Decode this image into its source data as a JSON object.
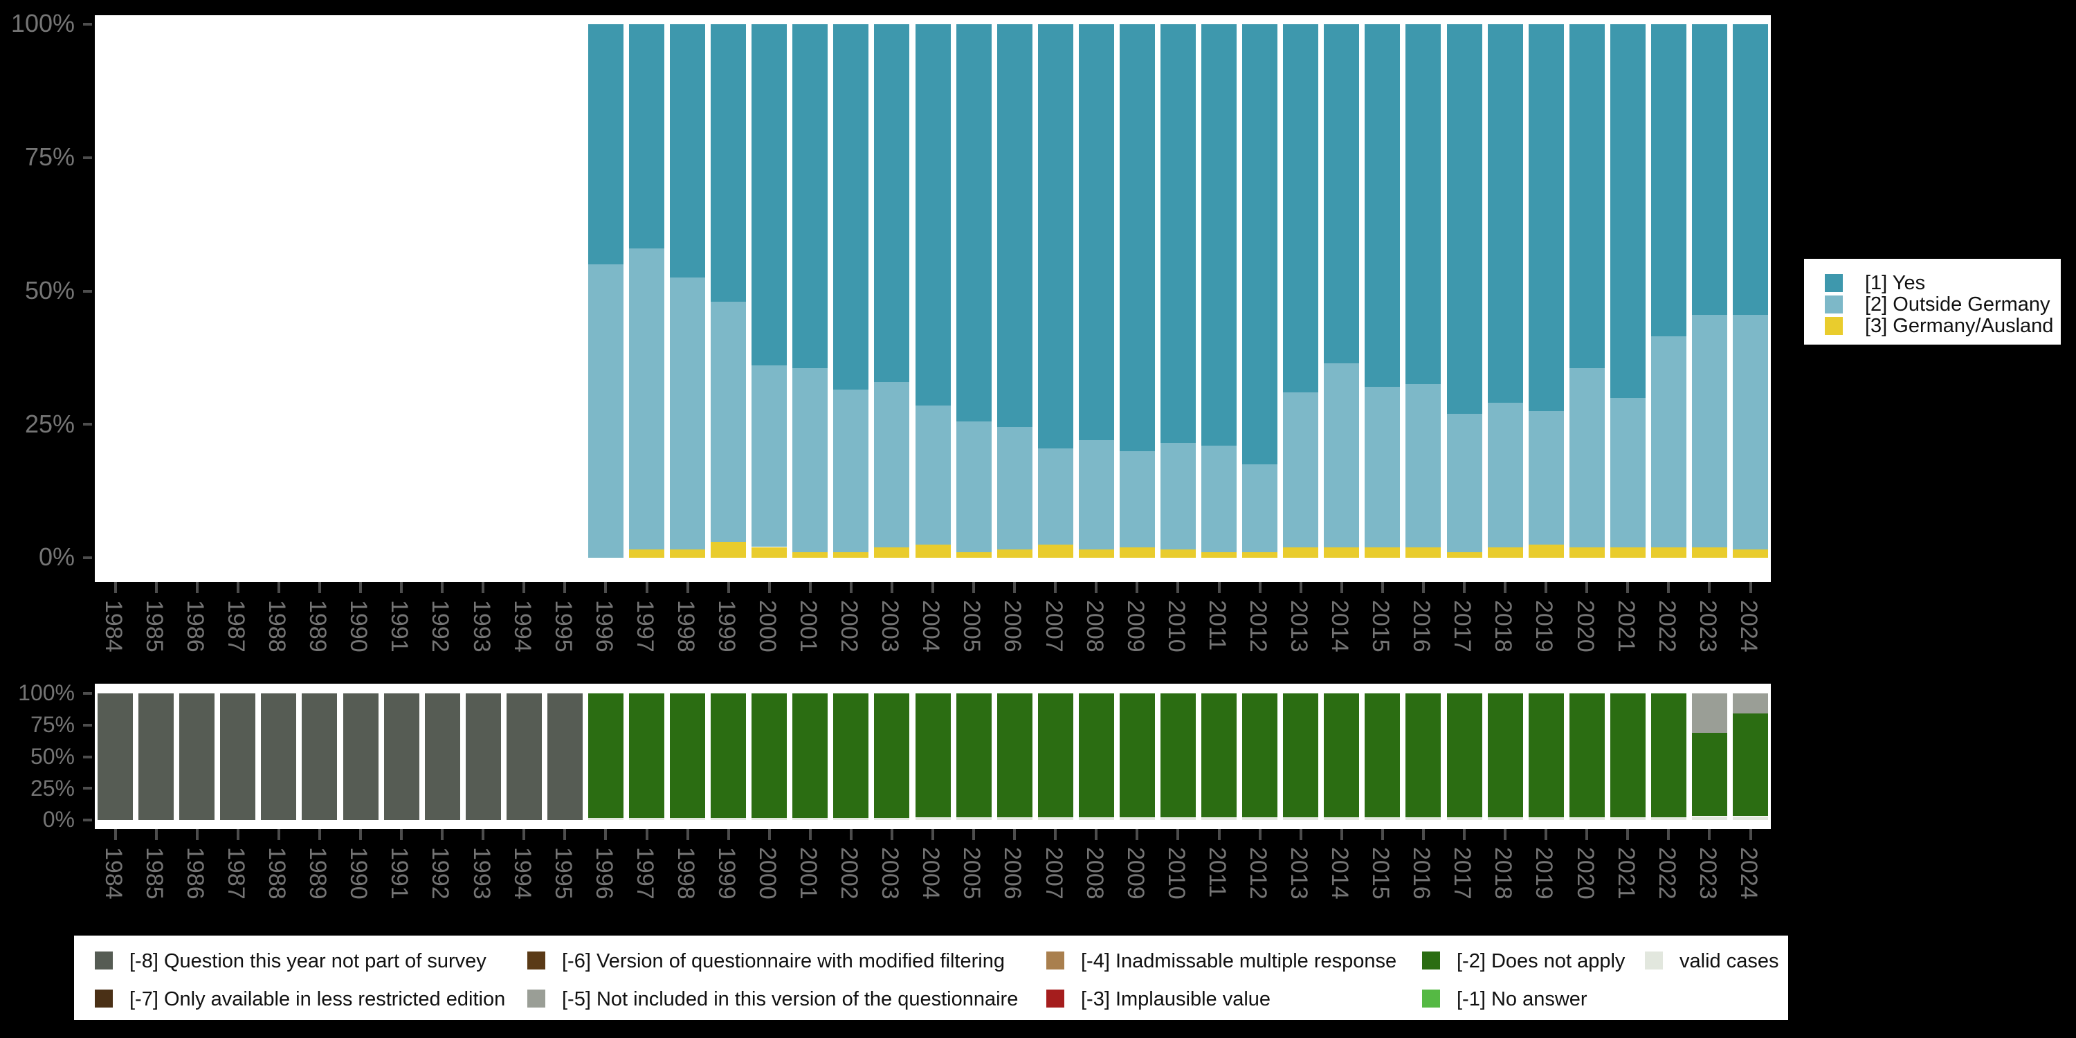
{
  "figure": {
    "background_color": "#000000",
    "panel_color": "#ffffff",
    "axis_tick_color": "#4d4d4d",
    "axis_label_color": "#757575"
  },
  "chart_data": [
    {
      "type": "bar",
      "stacked": true,
      "title": "",
      "xlabel": "",
      "ylabel": "",
      "ylim": [
        0,
        100
      ],
      "yticks": [
        "0%",
        "25%",
        "50%",
        "75%",
        "100%"
      ],
      "grid": false,
      "legend_position": "right",
      "categories": [
        "1984",
        "1985",
        "1986",
        "1987",
        "1988",
        "1989",
        "1990",
        "1991",
        "1992",
        "1993",
        "1994",
        "1995",
        "1996",
        "1997",
        "1998",
        "1999",
        "2000",
        "2001",
        "2002",
        "2003",
        "2004",
        "2005",
        "2006",
        "2007",
        "2008",
        "2009",
        "2010",
        "2011",
        "2012",
        "2013",
        "2014",
        "2015",
        "2016",
        "2017",
        "2018",
        "2019",
        "2020",
        "2021",
        "2022",
        "2023",
        "2024"
      ],
      "series": [
        {
          "name": "[3] Germany/Ausland",
          "color": "#e9cc2d",
          "values": [
            null,
            null,
            null,
            null,
            null,
            null,
            null,
            null,
            null,
            null,
            null,
            null,
            0,
            1.5,
            1.5,
            3,
            2,
            1,
            1,
            2,
            2.5,
            1,
            1.5,
            2.5,
            1.5,
            2,
            1.5,
            1,
            1,
            2,
            2,
            2,
            2,
            1,
            2,
            2.5,
            2,
            2,
            2,
            2,
            1.5
          ]
        },
        {
          "name": "[2] Outside Germany",
          "color": "#7db8c8",
          "values": [
            null,
            null,
            null,
            null,
            null,
            null,
            null,
            null,
            null,
            null,
            null,
            null,
            55,
            56.5,
            51,
            45,
            34,
            34.5,
            30.5,
            31,
            26,
            24.5,
            23,
            18,
            20.5,
            18,
            20,
            20,
            16.5,
            29,
            34.5,
            30,
            30.5,
            26,
            27,
            25,
            33.5,
            28,
            39.5,
            43.5,
            44
          ]
        },
        {
          "name": "[1] Yes",
          "color": "#3e98ad",
          "values": [
            null,
            null,
            null,
            null,
            null,
            null,
            null,
            null,
            null,
            null,
            null,
            null,
            45,
            42,
            47.5,
            52,
            64,
            64.5,
            68.5,
            67,
            71.5,
            74.5,
            75.5,
            79.5,
            78,
            80,
            78.5,
            79,
            82.5,
            69,
            63.5,
            68,
            67.5,
            73,
            71,
            72.5,
            64.5,
            70,
            58.5,
            54.5,
            54.5
          ]
        }
      ],
      "legend": {
        "entries": [
          {
            "label": "[1] Yes",
            "color": "#3e98ad"
          },
          {
            "label": "[2] Outside Germany",
            "color": "#7db8c8"
          },
          {
            "label": "[3] Germany/Ausland",
            "color": "#e9cc2d"
          }
        ]
      }
    },
    {
      "type": "bar",
      "stacked": true,
      "title": "",
      "xlabel": "",
      "ylabel": "",
      "ylim": [
        0,
        100
      ],
      "yticks": [
        "0%",
        "25%",
        "50%",
        "75%",
        "100%"
      ],
      "grid": false,
      "legend_position": "bottom",
      "categories": [
        "1984",
        "1985",
        "1986",
        "1987",
        "1988",
        "1989",
        "1990",
        "1991",
        "1992",
        "1993",
        "1994",
        "1995",
        "1996",
        "1997",
        "1998",
        "1999",
        "2000",
        "2001",
        "2002",
        "2003",
        "2004",
        "2005",
        "2006",
        "2007",
        "2008",
        "2009",
        "2010",
        "2011",
        "2012",
        "2013",
        "2014",
        "2015",
        "2016",
        "2017",
        "2018",
        "2019",
        "2020",
        "2021",
        "2022",
        "2023",
        "2024"
      ],
      "series": [
        {
          "name": "valid cases",
          "color": "#e2e7de",
          "values": [
            0,
            0,
            0,
            0,
            0,
            0,
            0,
            0,
            0,
            0,
            0,
            0,
            1.5,
            1.5,
            1.5,
            1.5,
            1.5,
            1.5,
            1.5,
            1.5,
            2,
            2,
            2,
            2,
            2,
            2,
            2,
            2,
            2,
            2,
            2,
            2,
            2,
            2,
            2,
            2,
            2,
            2,
            2,
            3,
            3
          ]
        },
        {
          "name": "[-2] Does not apply",
          "color": "#2b6d12",
          "values": [
            0,
            0,
            0,
            0,
            0,
            0,
            0,
            0,
            0,
            0,
            0,
            0,
            98.5,
            98.5,
            98.5,
            98.5,
            98.5,
            98.5,
            98.5,
            98.5,
            98,
            98,
            98,
            98,
            98,
            98,
            98,
            98,
            98,
            98,
            98,
            98,
            98,
            98,
            98,
            98,
            98,
            98,
            98,
            66,
            81
          ]
        },
        {
          "name": "[-5] Not included in this version of the questionnaire",
          "color": "#9a9e96",
          "values": [
            0,
            0,
            0,
            0,
            0,
            0,
            0,
            0,
            0,
            0,
            0,
            0,
            0,
            0,
            0,
            0,
            0,
            0,
            0,
            0,
            0,
            0,
            0,
            0,
            0,
            0,
            0,
            0,
            0,
            0,
            0,
            0,
            0,
            0,
            0,
            0,
            0,
            0,
            0,
            31,
            16
          ]
        },
        {
          "name": "[-8] Question this year not part of survey",
          "color": "#565c54",
          "values": [
            100,
            100,
            100,
            100,
            100,
            100,
            100,
            100,
            100,
            100,
            100,
            100,
            0,
            0,
            0,
            0,
            0,
            0,
            0,
            0,
            0,
            0,
            0,
            0,
            0,
            0,
            0,
            0,
            0,
            0,
            0,
            0,
            0,
            0,
            0,
            0,
            0,
            0,
            0,
            0,
            0
          ]
        }
      ],
      "legend": {
        "rows": [
          [
            {
              "label": "[-8] Question this year not part of survey",
              "color": "#565c54"
            },
            {
              "label": "[-6] Version of questionnaire with modified filtering",
              "color": "#5a3a17"
            },
            {
              "label": "[-4] Inadmissable multiple response",
              "color": "#a97f4e"
            },
            {
              "label": "[-2] Does not apply",
              "color": "#2b6d12"
            },
            {
              "label": "valid cases",
              "color": "#e2e7de"
            }
          ],
          [
            {
              "label": "[-7] Only available in less restricted edition",
              "color": "#4a3016"
            },
            {
              "label": "[-5] Not included in this version of the questionnaire",
              "color": "#9a9e96"
            },
            {
              "label": "[-3] Implausible value",
              "color": "#a51d1d"
            },
            {
              "label": "[-1] No answer",
              "color": "#55b944"
            }
          ]
        ]
      }
    }
  ]
}
